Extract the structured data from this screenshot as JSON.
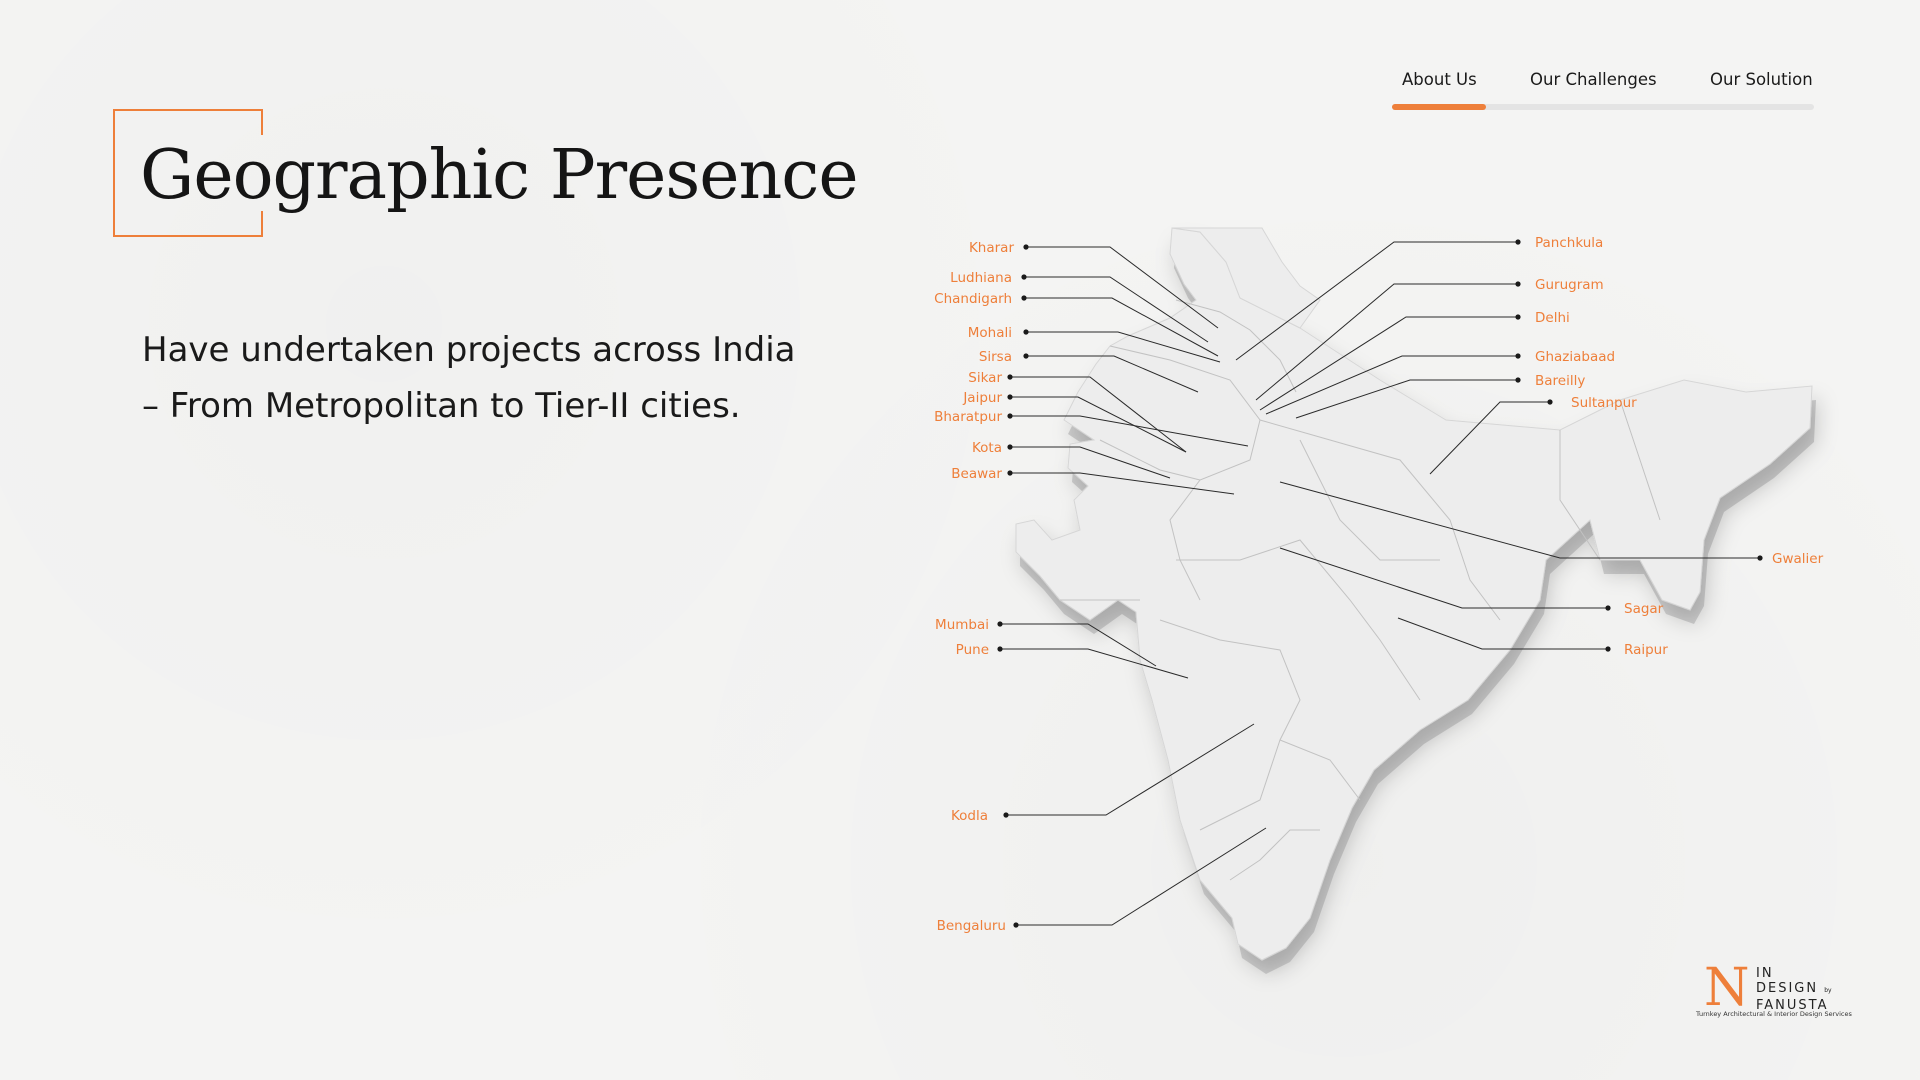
{
  "nav": {
    "items": [
      {
        "label": "About Us",
        "active": true
      },
      {
        "label": "Our Challenges",
        "active": false
      },
      {
        "label": "Our Solution",
        "active": false
      }
    ]
  },
  "title": "Geographic Presence",
  "subtitle": {
    "line1": "Have undertaken projects across India",
    "line2": "– From Metropolitan to Tier-II cities."
  },
  "map": {
    "region": "India",
    "cities": [
      "Kharar",
      "Ludhiana",
      "Chandigarh",
      "Mohali",
      "Sirsa",
      "Sikar",
      "Jaipur",
      "Bharatpur",
      "Kota",
      "Beawar",
      "Mumbai",
      "Pune",
      "Kodla",
      "Bengaluru",
      "Panchkula",
      "Gurugram",
      "Delhi",
      "Ghaziabaad",
      "Bareilly",
      "Sultanpur",
      "Gwalier",
      "Sagar",
      "Raipur"
    ]
  },
  "logo": {
    "mark": "N",
    "line1": "IN",
    "line2": "DESIGN",
    "by": "by",
    "line3": "FANUSTA",
    "tagline": "Turnkey Architectural & Interior Design Services"
  },
  "colors": {
    "accent": "#ee7f3a",
    "text": "#1a1a1a",
    "map_fill": "#ededed",
    "map_side": "#cfcfcf",
    "background": "#f4f4f3"
  }
}
